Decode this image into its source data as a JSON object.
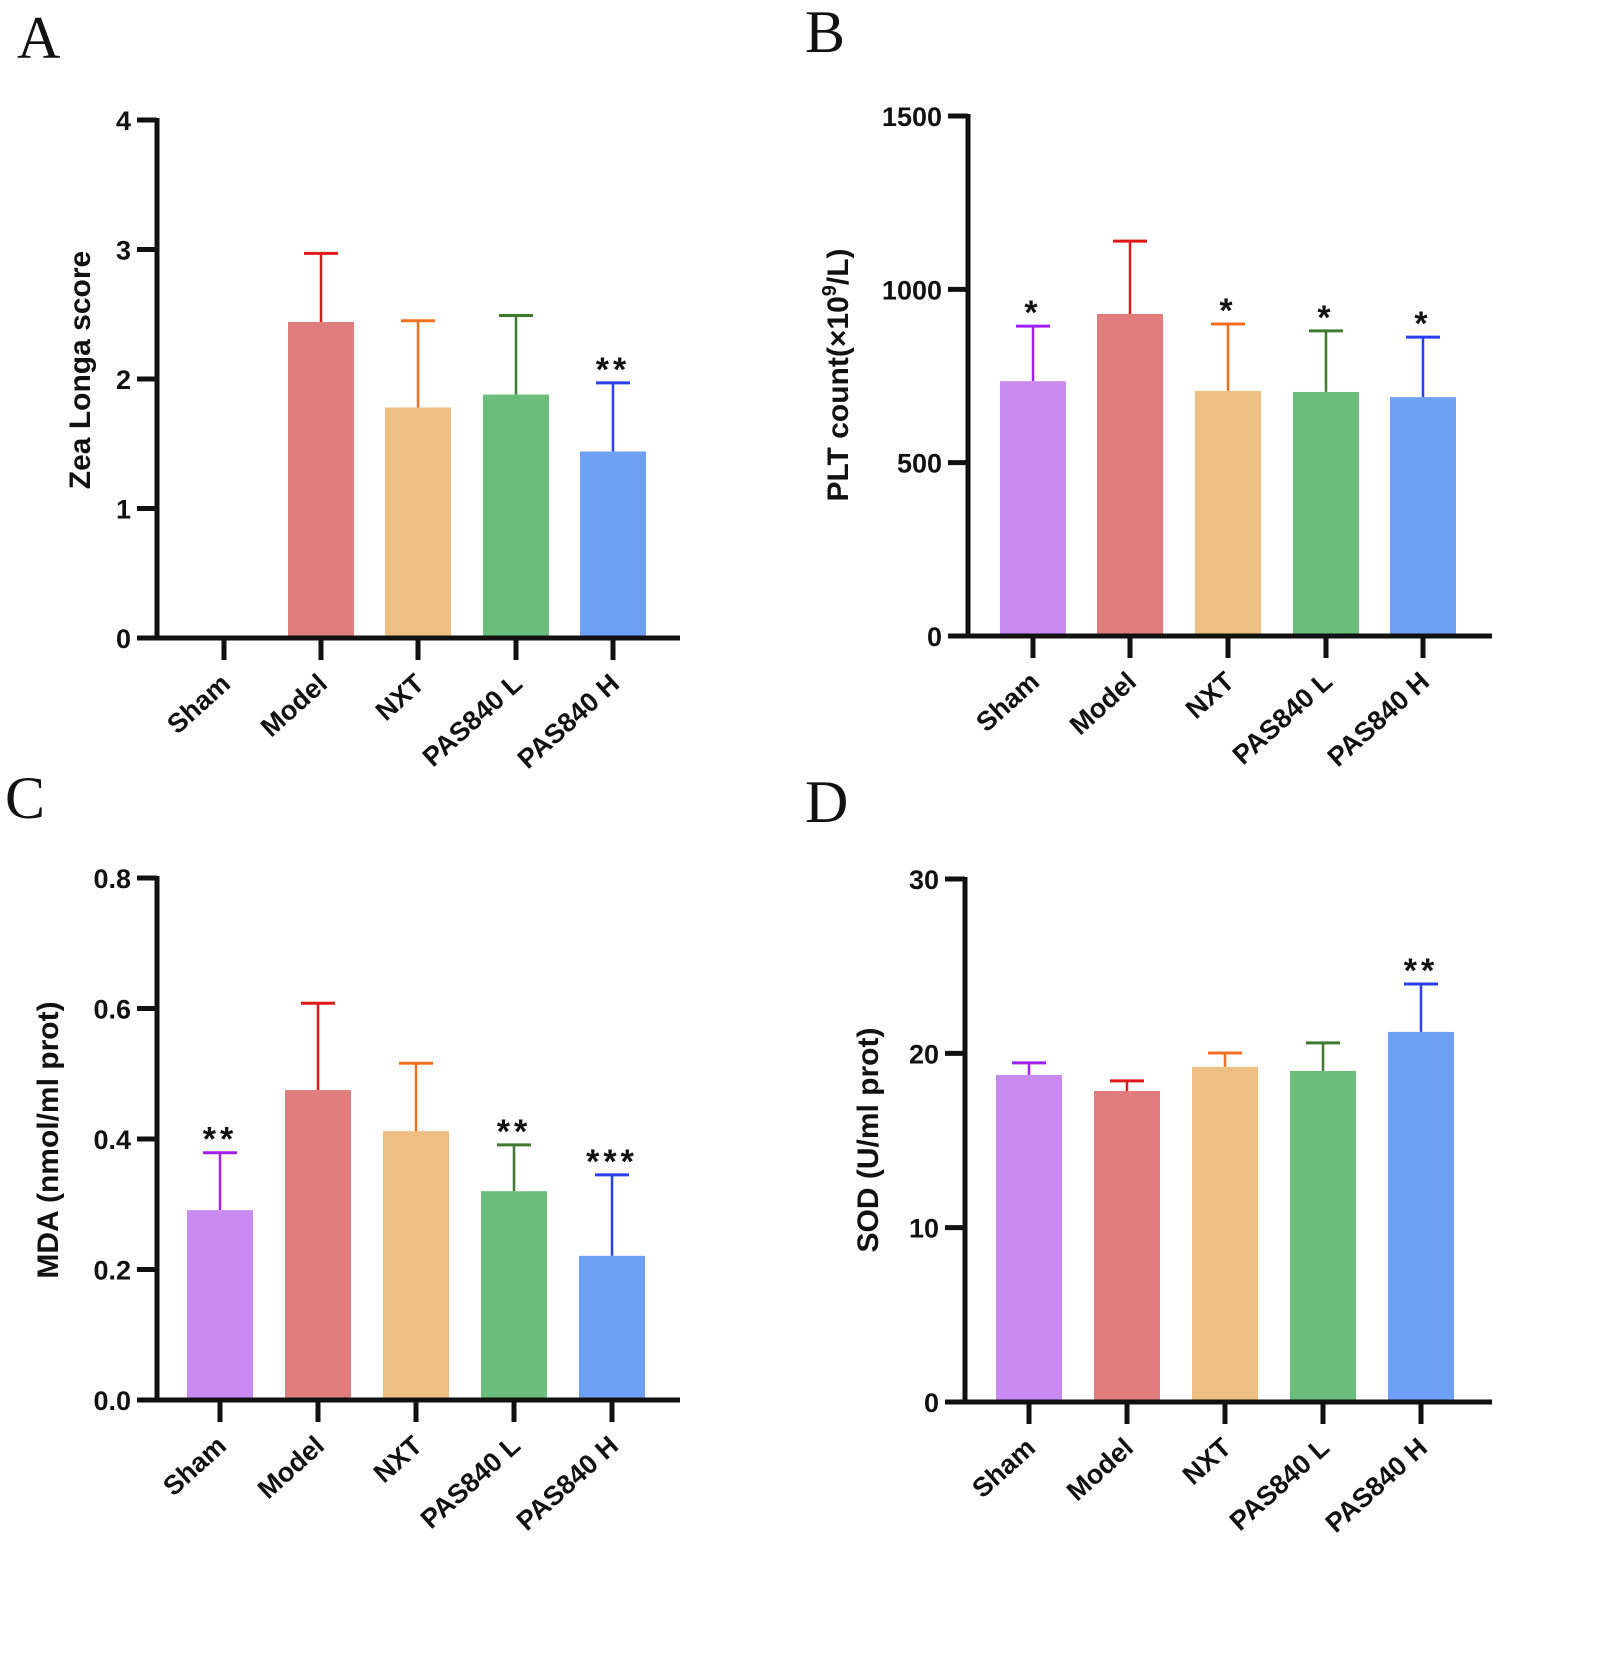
{
  "chart_data": [
    {
      "type": "bar",
      "panel": "A",
      "ylabel": "Zea Longa score",
      "ylim": [
        0,
        4
      ],
      "yticks": [
        0,
        1,
        2,
        3,
        4
      ],
      "categories": [
        "Sham",
        "Model",
        "NXT",
        "PAS840 L",
        "PAS840 H"
      ],
      "values": [
        0,
        2.44,
        1.78,
        1.88,
        1.44
      ],
      "error_upper": [
        0,
        2.97,
        2.45,
        2.49,
        1.97
      ],
      "significance": [
        "",
        "",
        "",
        "",
        "**"
      ]
    },
    {
      "type": "bar",
      "panel": "B",
      "ylabel": "PLT count(×10⁹/L)",
      "ylim": [
        0,
        1500
      ],
      "yticks": [
        0,
        500,
        1000,
        1500
      ],
      "categories": [
        "Sham",
        "Model",
        "NXT",
        "PAS840 L",
        "PAS840 H"
      ],
      "values": [
        735,
        929,
        707,
        704,
        689
      ],
      "error_upper": [
        894,
        1139,
        900,
        880,
        862
      ],
      "significance": [
        "*",
        "",
        "*",
        "*",
        "*"
      ]
    },
    {
      "type": "bar",
      "panel": "C",
      "ylabel": "MDA (nmol/ml prot)",
      "ylim": [
        0,
        0.8
      ],
      "yticks": [
        "0.0",
        "0.2",
        "0.4",
        "0.6",
        "0.8"
      ],
      "categories": [
        "Sham",
        "Model",
        "NXT",
        "PAS840 L",
        "PAS840 H"
      ],
      "values": [
        0.291,
        0.475,
        0.412,
        0.32,
        0.221
      ],
      "error_upper": [
        0.379,
        0.608,
        0.516,
        0.391,
        0.345
      ],
      "significance": [
        "**",
        "",
        "",
        "**",
        "***"
      ]
    },
    {
      "type": "bar",
      "panel": "D",
      "ylabel": "SOD (U/ml prot)",
      "ylim": [
        0,
        30
      ],
      "yticks": [
        0,
        10,
        20,
        30
      ],
      "categories": [
        "Sham",
        "Model",
        "NXT",
        "PAS840 L",
        "PAS840 H"
      ],
      "values": [
        18.76,
        17.84,
        19.22,
        18.99,
        21.23
      ],
      "error_upper": [
        19.45,
        18.42,
        20.02,
        20.6,
        23.98
      ],
      "significance": [
        "",
        "",
        "",
        "",
        "**"
      ]
    }
  ],
  "colors": {
    "bar": [
      "#c98af2",
      "#e17d7c",
      "#eebf82",
      "#6bbd7b",
      "#6ea0f5"
    ],
    "error": [
      "#a020f0",
      "#e01818",
      "#f07020",
      "#3f7a30",
      "#2a40f0"
    ]
  }
}
